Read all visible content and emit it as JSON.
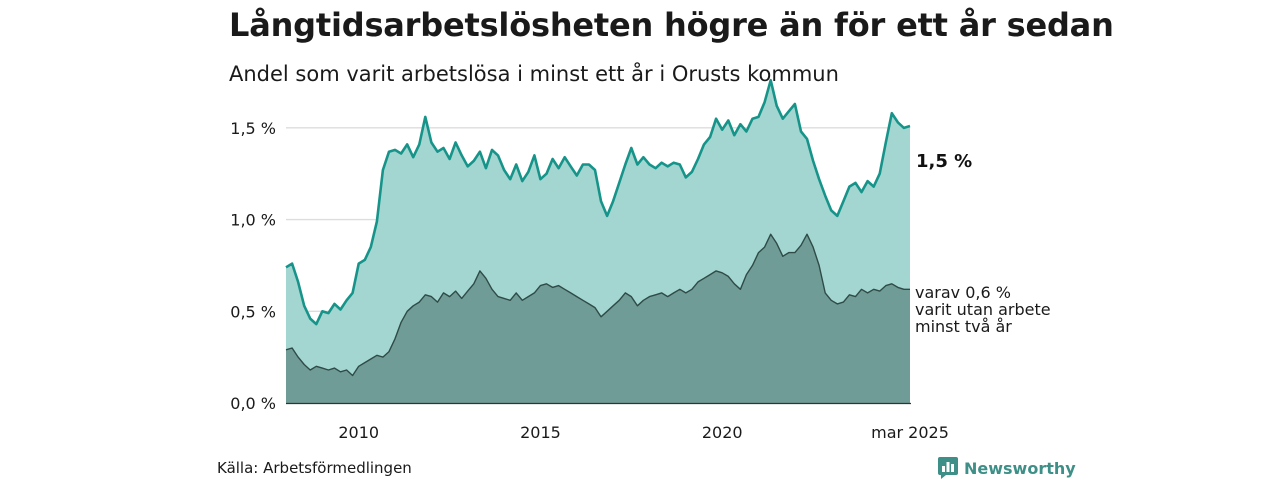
{
  "header": {
    "title": "Långtidsarbetslösheten högre än för ett år sedan",
    "subtitle": "Andel som varit arbetslösa i minst ett år i Orusts kommun"
  },
  "footer": {
    "source": "Källa: Arbetsförmedlingen",
    "brand": "Newsworthy"
  },
  "annotations": {
    "latest_value": "1,5 %",
    "sub_label_lines": [
      "varav 0,6 %",
      "varit utan arbete",
      "minst två år"
    ]
  },
  "colors": {
    "total_line": "#17948a",
    "total_fill": "#a4d6d1",
    "sub_line": "#2f4b47",
    "sub_fill": "#6f9c96",
    "grid": "#dddddd",
    "brand": "#3e8f87"
  },
  "chart_data": {
    "type": "area",
    "title": "Långtidsarbetslösheten högre än för ett år sedan",
    "subtitle": "Andel som varit arbetslösa i minst ett år i Orusts kommun",
    "xlabel": "",
    "ylabel": "",
    "x_range": [
      "2008-01",
      "2025-03"
    ],
    "x_ticks": [
      {
        "date": "2010-01",
        "label": "2010"
      },
      {
        "date": "2015-01",
        "label": "2015"
      },
      {
        "date": "2020-01",
        "label": "2020"
      },
      {
        "date": "2025-03",
        "label": "mar 2025"
      }
    ],
    "y_ticks": [
      {
        "value": 0.0,
        "label": "0,0 %"
      },
      {
        "value": 0.5,
        "label": "0,5 %"
      },
      {
        "value": 1.0,
        "label": "1,0 %"
      },
      {
        "value": 1.5,
        "label": "1,5 %"
      }
    ],
    "ylim": [
      0,
      1.75
    ],
    "grid": "horizontal",
    "legend": "none (direct labels at right)",
    "series": [
      {
        "name": "Andel som varit arbetslösa i minst ett år",
        "label": "1,5 %",
        "points": [
          [
            "2008-01",
            0.74
          ],
          [
            "2008-03",
            0.76
          ],
          [
            "2008-05",
            0.66
          ],
          [
            "2008-07",
            0.53
          ],
          [
            "2008-09",
            0.46
          ],
          [
            "2008-11",
            0.43
          ],
          [
            "2009-01",
            0.5
          ],
          [
            "2009-03",
            0.49
          ],
          [
            "2009-05",
            0.54
          ],
          [
            "2009-07",
            0.51
          ],
          [
            "2009-09",
            0.56
          ],
          [
            "2009-11",
            0.6
          ],
          [
            "2010-01",
            0.76
          ],
          [
            "2010-03",
            0.78
          ],
          [
            "2010-05",
            0.85
          ],
          [
            "2010-07",
            0.99
          ],
          [
            "2010-09",
            1.27
          ],
          [
            "2010-11",
            1.37
          ],
          [
            "2011-01",
            1.38
          ],
          [
            "2011-03",
            1.36
          ],
          [
            "2011-05",
            1.41
          ],
          [
            "2011-07",
            1.34
          ],
          [
            "2011-09",
            1.41
          ],
          [
            "2011-11",
            1.56
          ],
          [
            "2012-01",
            1.42
          ],
          [
            "2012-03",
            1.37
          ],
          [
            "2012-05",
            1.39
          ],
          [
            "2012-07",
            1.33
          ],
          [
            "2012-09",
            1.42
          ],
          [
            "2012-11",
            1.35
          ],
          [
            "2013-01",
            1.29
          ],
          [
            "2013-03",
            1.32
          ],
          [
            "2013-05",
            1.37
          ],
          [
            "2013-07",
            1.28
          ],
          [
            "2013-09",
            1.38
          ],
          [
            "2013-11",
            1.35
          ],
          [
            "2014-01",
            1.27
          ],
          [
            "2014-03",
            1.22
          ],
          [
            "2014-05",
            1.3
          ],
          [
            "2014-07",
            1.21
          ],
          [
            "2014-09",
            1.26
          ],
          [
            "2014-11",
            1.35
          ],
          [
            "2015-01",
            1.22
          ],
          [
            "2015-03",
            1.25
          ],
          [
            "2015-05",
            1.33
          ],
          [
            "2015-07",
            1.28
          ],
          [
            "2015-09",
            1.34
          ],
          [
            "2015-11",
            1.29
          ],
          [
            "2016-01",
            1.24
          ],
          [
            "2016-03",
            1.3
          ],
          [
            "2016-05",
            1.3
          ],
          [
            "2016-07",
            1.27
          ],
          [
            "2016-09",
            1.1
          ],
          [
            "2016-11",
            1.02
          ],
          [
            "2017-01",
            1.1
          ],
          [
            "2017-03",
            1.2
          ],
          [
            "2017-05",
            1.3
          ],
          [
            "2017-07",
            1.39
          ],
          [
            "2017-09",
            1.3
          ],
          [
            "2017-11",
            1.34
          ],
          [
            "2018-01",
            1.3
          ],
          [
            "2018-03",
            1.28
          ],
          [
            "2018-05",
            1.31
          ],
          [
            "2018-07",
            1.29
          ],
          [
            "2018-09",
            1.31
          ],
          [
            "2018-11",
            1.3
          ],
          [
            "2019-01",
            1.23
          ],
          [
            "2019-03",
            1.26
          ],
          [
            "2019-05",
            1.33
          ],
          [
            "2019-07",
            1.41
          ],
          [
            "2019-09",
            1.45
          ],
          [
            "2019-11",
            1.55
          ],
          [
            "2020-01",
            1.49
          ],
          [
            "2020-03",
            1.54
          ],
          [
            "2020-05",
            1.46
          ],
          [
            "2020-07",
            1.52
          ],
          [
            "2020-09",
            1.48
          ],
          [
            "2020-11",
            1.55
          ],
          [
            "2021-01",
            1.56
          ],
          [
            "2021-03",
            1.64
          ],
          [
            "2021-05",
            1.76
          ],
          [
            "2021-07",
            1.62
          ],
          [
            "2021-09",
            1.55
          ],
          [
            "2021-11",
            1.59
          ],
          [
            "2022-01",
            1.63
          ],
          [
            "2022-03",
            1.48
          ],
          [
            "2022-05",
            1.44
          ],
          [
            "2022-07",
            1.32
          ],
          [
            "2022-09",
            1.22
          ],
          [
            "2022-11",
            1.13
          ],
          [
            "2023-01",
            1.05
          ],
          [
            "2023-03",
            1.02
          ],
          [
            "2023-05",
            1.1
          ],
          [
            "2023-07",
            1.18
          ],
          [
            "2023-09",
            1.2
          ],
          [
            "2023-11",
            1.15
          ],
          [
            "2024-01",
            1.21
          ],
          [
            "2024-03",
            1.18
          ],
          [
            "2024-05",
            1.25
          ],
          [
            "2024-07",
            1.42
          ],
          [
            "2024-09",
            1.58
          ],
          [
            "2024-11",
            1.53
          ],
          [
            "2025-01",
            1.5
          ],
          [
            "2025-03",
            1.51
          ]
        ]
      },
      {
        "name": "varav varit utan arbete minst två år",
        "label": "varav 0,6 %",
        "points": [
          [
            "2008-01",
            0.29
          ],
          [
            "2008-03",
            0.3
          ],
          [
            "2008-05",
            0.25
          ],
          [
            "2008-07",
            0.21
          ],
          [
            "2008-09",
            0.18
          ],
          [
            "2008-11",
            0.2
          ],
          [
            "2009-01",
            0.19
          ],
          [
            "2009-03",
            0.18
          ],
          [
            "2009-05",
            0.19
          ],
          [
            "2009-07",
            0.17
          ],
          [
            "2009-09",
            0.18
          ],
          [
            "2009-11",
            0.15
          ],
          [
            "2010-01",
            0.2
          ],
          [
            "2010-03",
            0.22
          ],
          [
            "2010-05",
            0.24
          ],
          [
            "2010-07",
            0.26
          ],
          [
            "2010-09",
            0.25
          ],
          [
            "2010-11",
            0.28
          ],
          [
            "2011-01",
            0.35
          ],
          [
            "2011-03",
            0.44
          ],
          [
            "2011-05",
            0.5
          ],
          [
            "2011-07",
            0.53
          ],
          [
            "2011-09",
            0.55
          ],
          [
            "2011-11",
            0.59
          ],
          [
            "2012-01",
            0.58
          ],
          [
            "2012-03",
            0.55
          ],
          [
            "2012-05",
            0.6
          ],
          [
            "2012-07",
            0.58
          ],
          [
            "2012-09",
            0.61
          ],
          [
            "2012-11",
            0.57
          ],
          [
            "2013-01",
            0.61
          ],
          [
            "2013-03",
            0.65
          ],
          [
            "2013-05",
            0.72
          ],
          [
            "2013-07",
            0.68
          ],
          [
            "2013-09",
            0.62
          ],
          [
            "2013-11",
            0.58
          ],
          [
            "2014-01",
            0.57
          ],
          [
            "2014-03",
            0.56
          ],
          [
            "2014-05",
            0.6
          ],
          [
            "2014-07",
            0.56
          ],
          [
            "2014-09",
            0.58
          ],
          [
            "2014-11",
            0.6
          ],
          [
            "2015-01",
            0.64
          ],
          [
            "2015-03",
            0.65
          ],
          [
            "2015-05",
            0.63
          ],
          [
            "2015-07",
            0.64
          ],
          [
            "2015-09",
            0.62
          ],
          [
            "2015-11",
            0.6
          ],
          [
            "2016-01",
            0.58
          ],
          [
            "2016-03",
            0.56
          ],
          [
            "2016-05",
            0.54
          ],
          [
            "2016-07",
            0.52
          ],
          [
            "2016-09",
            0.47
          ],
          [
            "2016-11",
            0.5
          ],
          [
            "2017-01",
            0.53
          ],
          [
            "2017-03",
            0.56
          ],
          [
            "2017-05",
            0.6
          ],
          [
            "2017-07",
            0.58
          ],
          [
            "2017-09",
            0.53
          ],
          [
            "2017-11",
            0.56
          ],
          [
            "2018-01",
            0.58
          ],
          [
            "2018-03",
            0.59
          ],
          [
            "2018-05",
            0.6
          ],
          [
            "2018-07",
            0.58
          ],
          [
            "2018-09",
            0.6
          ],
          [
            "2018-11",
            0.62
          ],
          [
            "2019-01",
            0.6
          ],
          [
            "2019-03",
            0.62
          ],
          [
            "2019-05",
            0.66
          ],
          [
            "2019-07",
            0.68
          ],
          [
            "2019-09",
            0.7
          ],
          [
            "2019-11",
            0.72
          ],
          [
            "2020-01",
            0.71
          ],
          [
            "2020-03",
            0.69
          ],
          [
            "2020-05",
            0.65
          ],
          [
            "2020-07",
            0.62
          ],
          [
            "2020-09",
            0.7
          ],
          [
            "2020-11",
            0.75
          ],
          [
            "2021-01",
            0.82
          ],
          [
            "2021-03",
            0.85
          ],
          [
            "2021-05",
            0.92
          ],
          [
            "2021-07",
            0.87
          ],
          [
            "2021-09",
            0.8
          ],
          [
            "2021-11",
            0.82
          ],
          [
            "2022-01",
            0.82
          ],
          [
            "2022-03",
            0.86
          ],
          [
            "2022-05",
            0.92
          ],
          [
            "2022-07",
            0.85
          ],
          [
            "2022-09",
            0.75
          ],
          [
            "2022-11",
            0.6
          ],
          [
            "2023-01",
            0.56
          ],
          [
            "2023-03",
            0.54
          ],
          [
            "2023-05",
            0.55
          ],
          [
            "2023-07",
            0.59
          ],
          [
            "2023-09",
            0.58
          ],
          [
            "2023-11",
            0.62
          ],
          [
            "2024-01",
            0.6
          ],
          [
            "2024-03",
            0.62
          ],
          [
            "2024-05",
            0.61
          ],
          [
            "2024-07",
            0.64
          ],
          [
            "2024-09",
            0.65
          ],
          [
            "2024-11",
            0.63
          ],
          [
            "2025-01",
            0.62
          ],
          [
            "2025-03",
            0.62
          ]
        ]
      }
    ]
  }
}
